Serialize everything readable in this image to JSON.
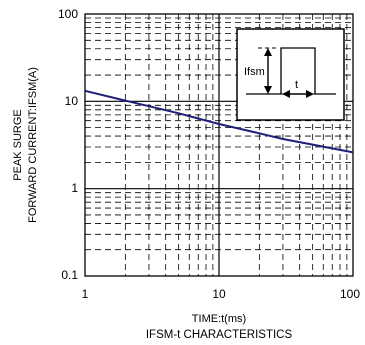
{
  "chart_data": {
    "type": "line",
    "xscale": "log",
    "yscale": "log",
    "xlim": [
      1,
      100
    ],
    "ylim": [
      0.1,
      100
    ],
    "x_ticks": [
      "1",
      "10",
      "100"
    ],
    "y_ticks": [
      "0.1",
      "1",
      "10",
      "100"
    ],
    "xlabel": "TIME:t(ms)",
    "ylabel_line1": "PEAK SURGE",
    "ylabel_line2": "FORWARD CURRENT:IFSM(A)",
    "caption": "IFSM-t CHARACTERISTICS",
    "grid": true,
    "grid_style": "dashed",
    "series": [
      {
        "color": "#1f1f7a",
        "x": [
          1,
          2,
          3,
          5,
          10,
          20,
          30,
          50,
          100
        ],
        "y": [
          13.2,
          10.2,
          8.8,
          7.3,
          5.5,
          4.3,
          3.7,
          3.2,
          2.6
        ]
      }
    ],
    "inset": {
      "label": "Ifsm",
      "time_label": "t"
    }
  }
}
